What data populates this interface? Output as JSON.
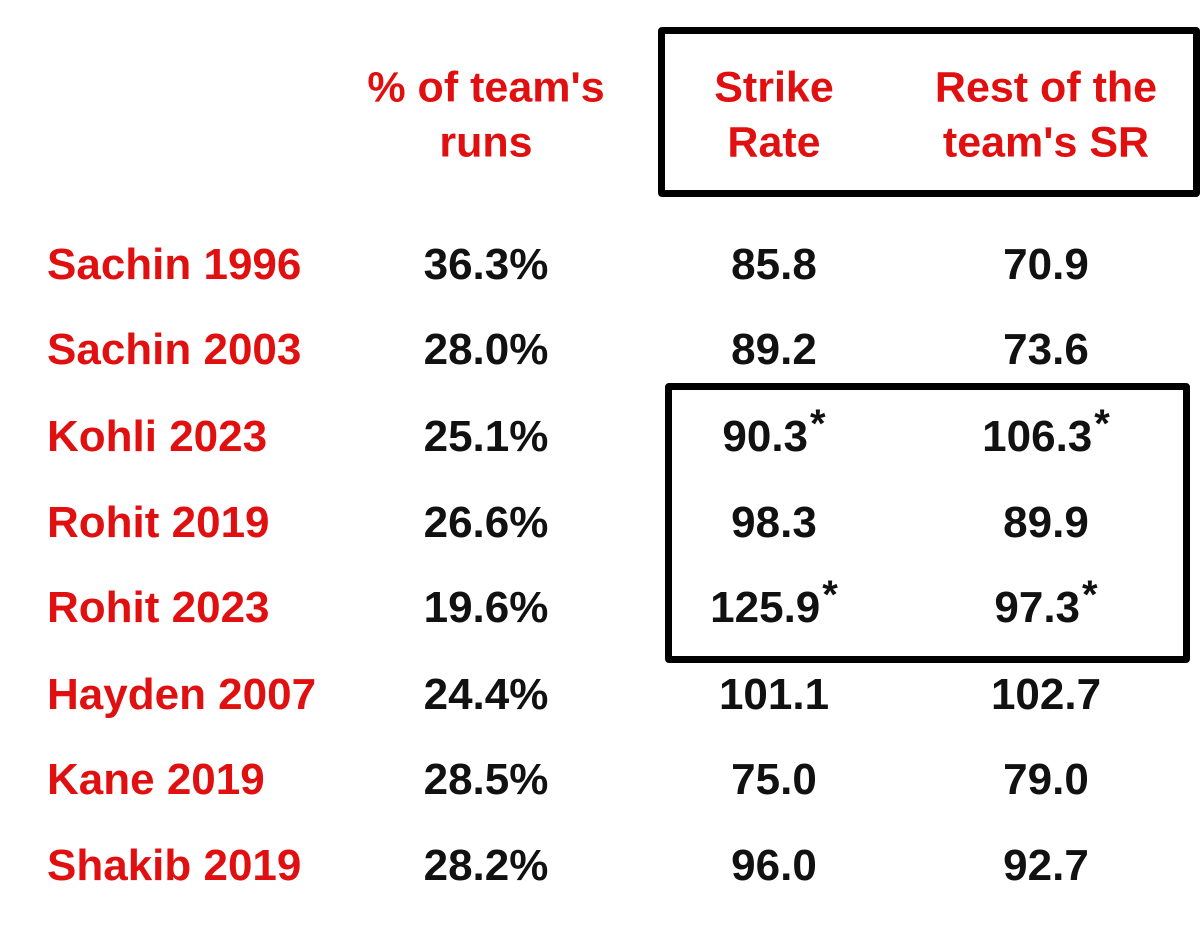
{
  "table": {
    "headers": [
      [
        "% of team's",
        "runs"
      ],
      [
        "Strike",
        "Rate"
      ],
      [
        "Rest of the",
        "team's SR"
      ]
    ],
    "rows": [
      [
        "Sachin 1996",
        "36.3%",
        "85.8",
        "70.9"
      ],
      [
        "Sachin 2003",
        "28.0%",
        "89.2",
        "73.6"
      ],
      [
        "Kohli 2023",
        "25.1%",
        {
          "text": "90.3",
          "mark": "*"
        },
        {
          "text": "106.3",
          "mark": "*"
        }
      ],
      [
        "Rohit 2019",
        "26.6%",
        "98.3",
        "89.9"
      ],
      [
        "Rohit 2023",
        "19.6%",
        {
          "text": "125.9",
          "mark": "*"
        },
        {
          "text": "97.3",
          "mark": "*"
        }
      ],
      [
        "Hayden 2007",
        "24.4%",
        "101.1",
        "102.7"
      ],
      [
        "Kane 2019",
        "28.5%",
        "75.0",
        "79.0"
      ],
      [
        "Shakib 2019",
        "28.2%",
        "96.0",
        "92.7"
      ]
    ]
  }
}
